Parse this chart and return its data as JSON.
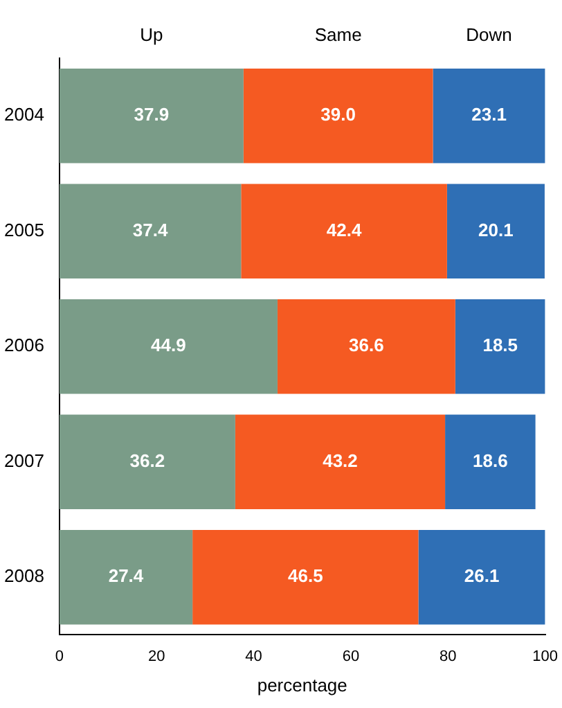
{
  "chart_data": {
    "type": "bar",
    "orientation": "horizontal",
    "stacked": true,
    "xlabel": "percentage",
    "categories": [
      "2004",
      "2005",
      "2006",
      "2007",
      "2008"
    ],
    "series": [
      {
        "name": "Up",
        "color": "#7a9c88",
        "values": [
          37.9,
          37.4,
          44.9,
          36.2,
          27.4
        ],
        "value_labels": [
          "37.9",
          "37.4",
          "44.9",
          "36.2",
          "27.4"
        ]
      },
      {
        "name": "Same",
        "color": "#f55a22",
        "values": [
          39.0,
          42.4,
          36.6,
          43.2,
          46.5
        ],
        "value_labels": [
          "39.0",
          "42.4",
          "36.6",
          "43.2",
          "46.5"
        ]
      },
      {
        "name": "Down",
        "color": "#2f6fb5",
        "values": [
          23.1,
          20.1,
          18.5,
          18.6,
          26.1
        ],
        "value_labels": [
          "23.1",
          "20.1",
          "18.5",
          "18.6",
          "26.1"
        ]
      }
    ],
    "xlim": [
      0,
      100
    ],
    "xticks": [
      0,
      20,
      40,
      60,
      80,
      100
    ],
    "grid": false
  }
}
